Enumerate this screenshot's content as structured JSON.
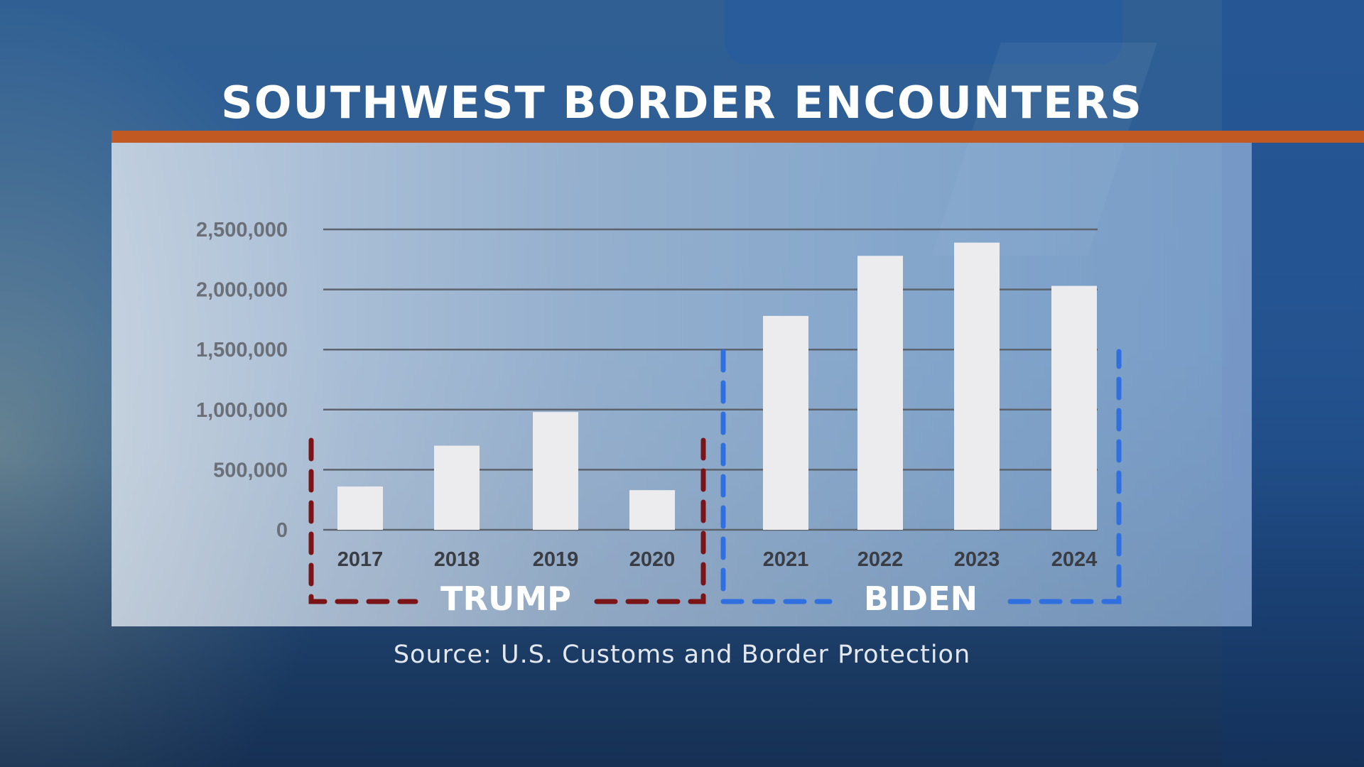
{
  "title": "SOUTHWEST BORDER ENCOUNTERS",
  "source": "Source: U.S. Customs and Border Protection",
  "colors": {
    "accent_rule": "#c05a22",
    "bar": "#ececee",
    "trump_bracket": "#7a1416",
    "biden_bracket": "#2f6fe0"
  },
  "chart_data": {
    "type": "bar",
    "title": "SOUTHWEST BORDER ENCOUNTERS",
    "categories": [
      "2017",
      "2018",
      "2019",
      "2020",
      "2021",
      "2022",
      "2023",
      "2024"
    ],
    "values": [
      360000,
      700000,
      980000,
      330000,
      1780000,
      2280000,
      2390000,
      2030000
    ],
    "ylim": [
      0,
      2500000
    ],
    "yticks": [
      0,
      500000,
      1000000,
      1500000,
      2000000,
      2500000
    ],
    "ytick_labels": [
      "0",
      "500,000",
      "1,000,000",
      "1,500,000",
      "2,000,000",
      "2,500,000"
    ],
    "xlabel": "",
    "ylabel": "",
    "grid": true,
    "groups": [
      {
        "label": "TRUMP",
        "categories": [
          "2017",
          "2018",
          "2019",
          "2020"
        ],
        "color": "#7a1416"
      },
      {
        "label": "BIDEN",
        "categories": [
          "2021",
          "2022",
          "2023",
          "2024"
        ],
        "color": "#2f6fe0"
      }
    ]
  }
}
